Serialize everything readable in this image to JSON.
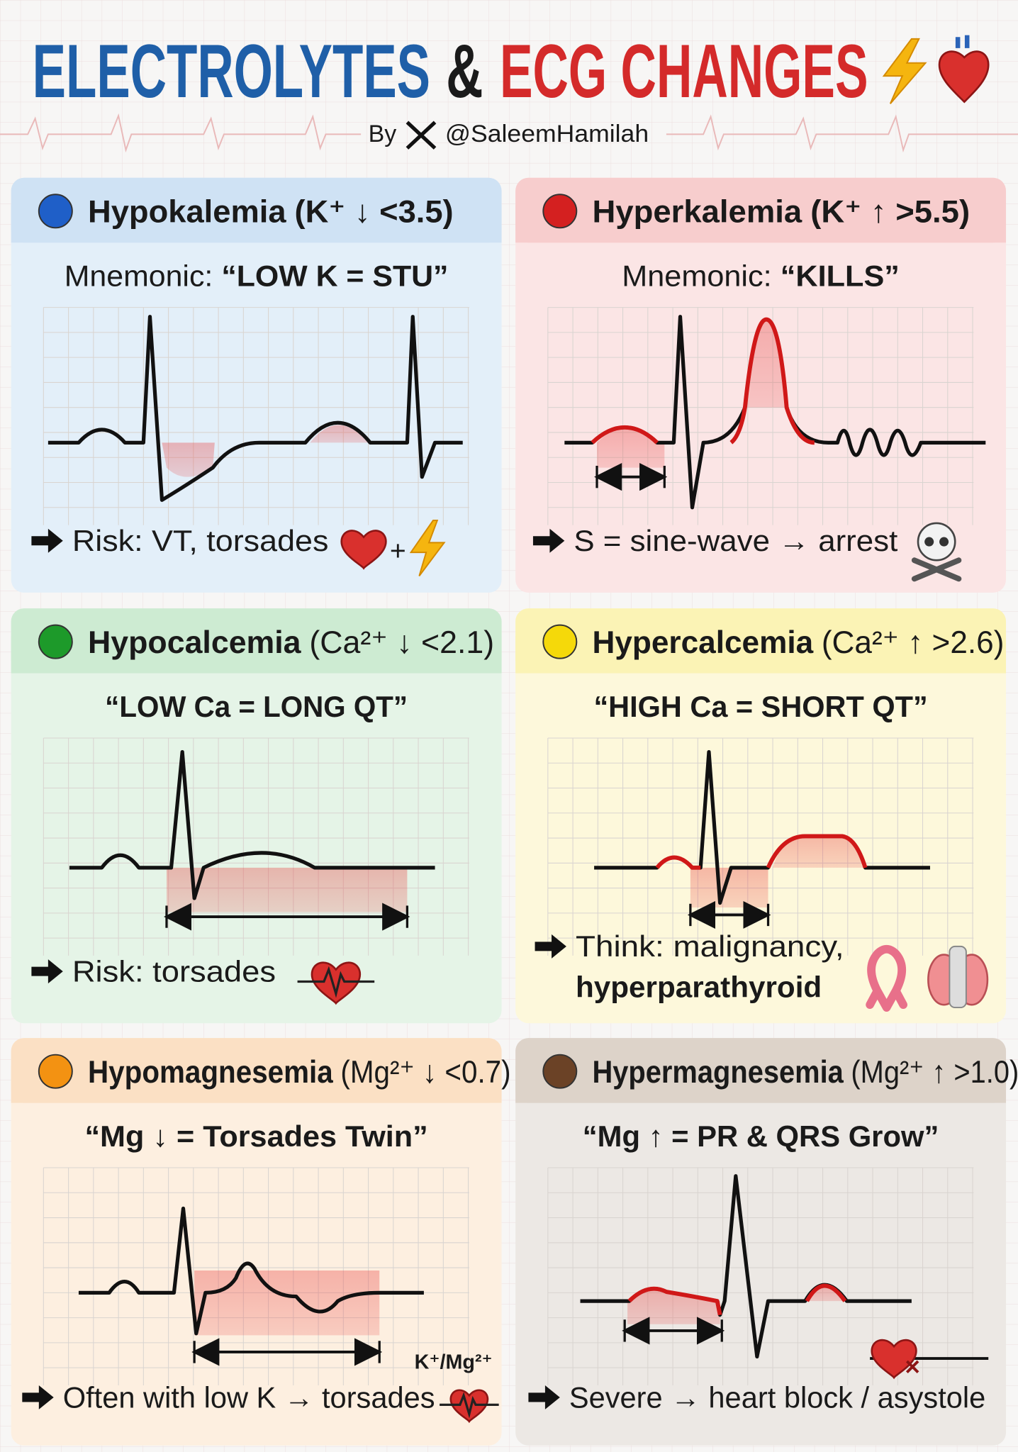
{
  "header": {
    "title_part1": "ELECTROLYTES",
    "title_part2": "&",
    "title_part3": "ECG CHANGES",
    "byline_prefix": "By",
    "byline_handle": "@SaleemHamilah"
  },
  "cards": [
    {
      "name": "Hypokalemia",
      "range": "(K⁺ ↓ <3.5)",
      "mnemonic_label": "Mnemonic:",
      "mnemonic": "“LOW K = STU”",
      "risk": [
        "Risk: VT, torsades"
      ],
      "icon_joiner": "+"
    },
    {
      "name": "Hyperkalemia",
      "range": "(K⁺ ↑ >5.5)",
      "mnemonic_label": "Mnemonic:",
      "mnemonic": "“KILLS”",
      "risk": [
        "S = sine-wave → arrest"
      ]
    },
    {
      "name": "Hypocalcemia",
      "range": "(Ca²⁺ ↓ <2.1)",
      "mnemonic": "“LOW Ca = LONG QT”",
      "risk": [
        "Risk: torsades"
      ]
    },
    {
      "name": "Hypercalcemia",
      "range": "(Ca²⁺ ↑ >2.6)",
      "mnemonic": "“HIGH Ca = SHORT QT”",
      "risk": [
        "Think: malignancy,",
        "hyperparathyroid"
      ]
    },
    {
      "name": "Hypomagnesemia",
      "range": "(Mg²⁺ ↓ <0.7)",
      "mnemonic": "“Mg ↓ = Torsades Twin”",
      "risk": [
        "Often with low K → torsades"
      ],
      "label": "K⁺/Mg²⁺"
    },
    {
      "name": "Hypermagnesemia",
      "range": "(Mg²⁺ ↑ >1.0)",
      "mnemonic": "“Mg ↑ = PR & QRS Grow”",
      "risk": [
        "Severe → heart block / asystole"
      ]
    }
  ]
}
